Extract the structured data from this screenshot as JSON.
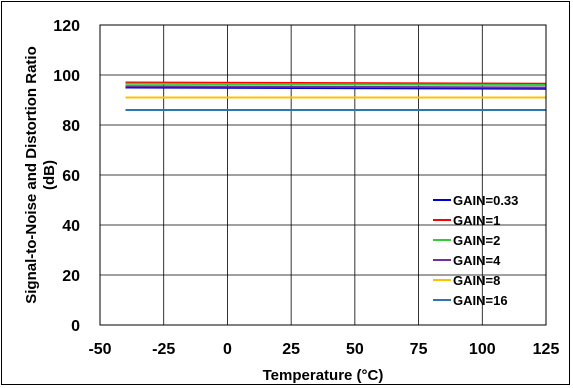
{
  "chart_data": {
    "type": "line",
    "title": "",
    "xlabel": "Temperature (°C)",
    "ylabel_line1": "Signal-to-Noise and Distortion Ratio",
    "ylabel_line2": "(dB)",
    "xlim": [
      -50,
      125
    ],
    "ylim": [
      0,
      120
    ],
    "xticks": [
      -50,
      -25,
      0,
      25,
      50,
      75,
      100,
      125
    ],
    "yticks": [
      0,
      20,
      40,
      60,
      80,
      100,
      120
    ],
    "grid": true,
    "legend_position": "bottom-right",
    "x": [
      -40,
      125
    ],
    "series": [
      {
        "name": "GAIN=0.33",
        "color": "#0000cc",
        "values": [
          95,
          94.5
        ]
      },
      {
        "name": "GAIN=1",
        "color": "#ff0000",
        "values": [
          97,
          96.5
        ]
      },
      {
        "name": "GAIN=2",
        "color": "#33cc33",
        "values": [
          96.5,
          96
        ]
      },
      {
        "name": "GAIN=4",
        "color": "#7030a0",
        "values": [
          95.5,
          95
        ]
      },
      {
        "name": "GAIN=8",
        "color": "#ffc000",
        "values": [
          91,
          91
        ]
      },
      {
        "name": "GAIN=16",
        "color": "#2e75b6",
        "values": [
          86,
          86
        ]
      }
    ]
  }
}
